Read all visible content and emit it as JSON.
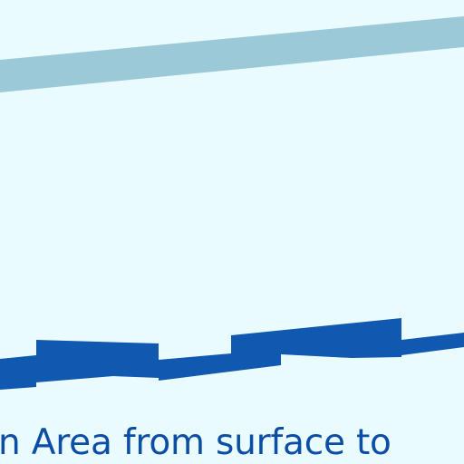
{
  "figure": {
    "caption": "n Area from surface to",
    "colors": {
      "background": "#eafbfd",
      "upper_band": "#9cc9d8",
      "lower_band": "#1058b0",
      "caption_text": "#0c4ea6"
    }
  }
}
